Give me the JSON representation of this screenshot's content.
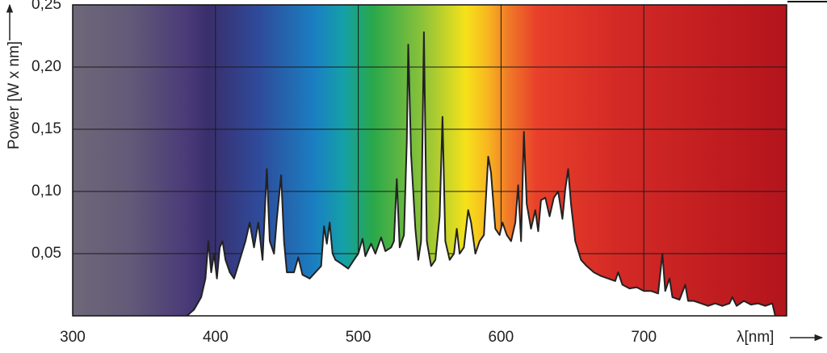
{
  "chart_data": {
    "type": "area",
    "ylabel": "Power [W x nm]",
    "xlabel": "λ[nm]",
    "xlim": [
      300,
      800
    ],
    "xticks": [
      300,
      400,
      500,
      600,
      700
    ],
    "ylim": [
      0,
      0.25
    ],
    "yticks": [
      {
        "value": 0.05,
        "label": "0,05"
      },
      {
        "value": 0.1,
        "label": "0,10"
      },
      {
        "value": 0.15,
        "label": "0,15"
      },
      {
        "value": 0.2,
        "label": "0,20"
      },
      {
        "value": 0.25,
        "label": "0,25"
      }
    ],
    "grid": true,
    "color": "#222222",
    "fill": "#ffffff",
    "x": [
      380,
      385,
      390,
      393,
      395,
      397,
      399,
      401,
      403,
      405,
      407,
      410,
      413,
      417,
      421,
      424,
      427,
      430,
      433,
      436,
      438,
      441,
      443,
      446,
      448,
      450,
      455,
      458,
      461,
      466,
      470,
      474,
      476,
      478,
      480,
      482,
      484,
      488,
      493,
      497,
      500,
      503,
      505,
      509,
      512,
      516,
      519,
      523,
      525,
      527,
      529,
      532,
      534,
      535,
      537,
      540,
      542,
      544,
      546,
      548,
      551,
      554,
      557,
      559,
      561,
      564,
      567,
      569,
      571,
      574,
      577,
      579,
      582,
      585,
      588,
      591,
      593,
      596,
      599,
      601,
      604,
      607,
      610,
      612,
      614,
      616,
      618,
      621,
      624,
      626,
      628,
      631,
      634,
      637,
      640,
      643,
      645,
      647,
      649,
      652,
      656,
      660,
      665,
      670,
      675,
      680,
      682,
      685,
      690,
      695,
      700,
      705,
      710,
      713,
      715,
      718,
      720,
      725,
      729,
      731,
      735,
      740,
      745,
      750,
      755,
      760,
      762,
      765,
      770,
      775,
      780,
      785,
      790,
      792
    ],
    "values": [
      0.0,
      0.005,
      0.015,
      0.03,
      0.06,
      0.035,
      0.05,
      0.03,
      0.055,
      0.06,
      0.045,
      0.035,
      0.03,
      0.045,
      0.06,
      0.075,
      0.055,
      0.075,
      0.045,
      0.118,
      0.06,
      0.05,
      0.078,
      0.113,
      0.06,
      0.035,
      0.035,
      0.047,
      0.033,
      0.03,
      0.035,
      0.04,
      0.072,
      0.058,
      0.075,
      0.05,
      0.045,
      0.042,
      0.038,
      0.045,
      0.05,
      0.062,
      0.048,
      0.058,
      0.05,
      0.063,
      0.052,
      0.055,
      0.06,
      0.11,
      0.055,
      0.065,
      0.14,
      0.218,
      0.13,
      0.07,
      0.045,
      0.06,
      0.228,
      0.06,
      0.04,
      0.045,
      0.08,
      0.16,
      0.06,
      0.045,
      0.05,
      0.07,
      0.05,
      0.055,
      0.085,
      0.075,
      0.05,
      0.06,
      0.065,
      0.128,
      0.115,
      0.07,
      0.065,
      0.075,
      0.065,
      0.06,
      0.075,
      0.105,
      0.06,
      0.148,
      0.09,
      0.07,
      0.085,
      0.068,
      0.093,
      0.095,
      0.08,
      0.095,
      0.1,
      0.078,
      0.102,
      0.118,
      0.09,
      0.06,
      0.045,
      0.04,
      0.035,
      0.032,
      0.03,
      0.028,
      0.035,
      0.025,
      0.022,
      0.023,
      0.02,
      0.02,
      0.018,
      0.05,
      0.02,
      0.03,
      0.015,
      0.013,
      0.025,
      0.012,
      0.012,
      0.01,
      0.008,
      0.01,
      0.008,
      0.01,
      0.015,
      0.008,
      0.012,
      0.009,
      0.01,
      0.008,
      0.01,
      0.0
    ]
  }
}
